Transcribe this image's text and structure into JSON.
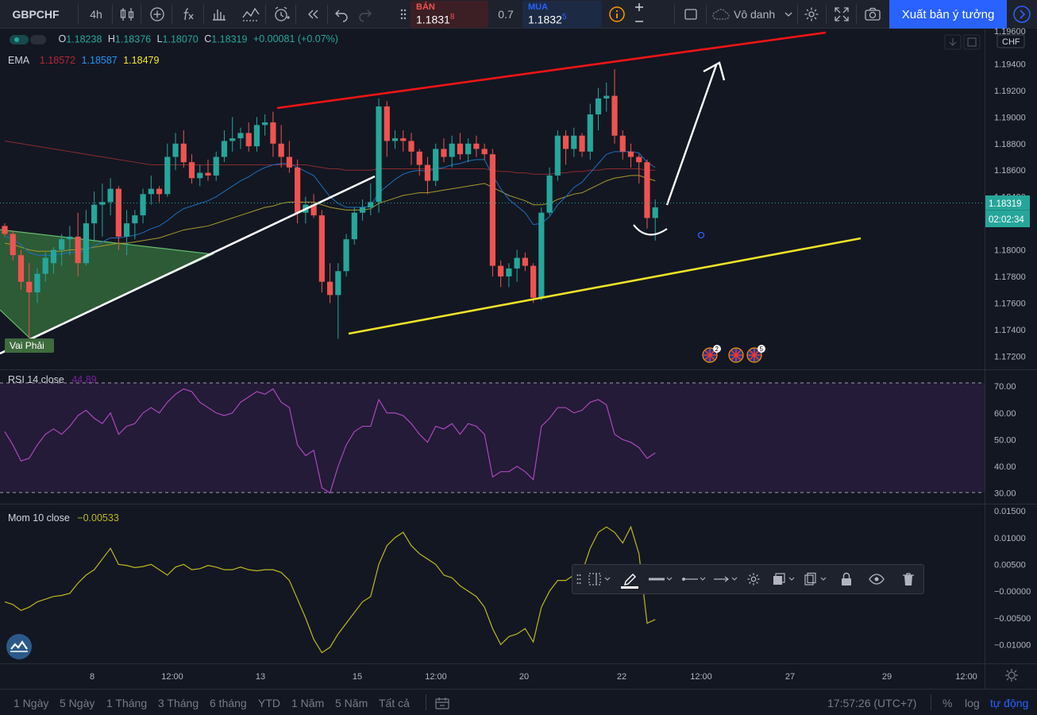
{
  "toolbar": {
    "symbol": "GBPCHF",
    "interval": "4h",
    "sell_label": "BÁN",
    "sell_price": "1.1831",
    "sell_price_sup": "8",
    "spread": "0.7",
    "buy_label": "MUA",
    "buy_price": "1.1832",
    "buy_price_sup": "5",
    "layout_name": "Vô danh",
    "publish_label": "Xuất bản ý tưởng"
  },
  "legend": {
    "ohlc": {
      "o_label": "O",
      "o": "1.18238",
      "h_label": "H",
      "h": "1.18376",
      "l_label": "L",
      "l": "1.18070",
      "c_label": "C",
      "c": "1.18319",
      "change": "+0.00081 (+0.07%)"
    },
    "ema": {
      "label": "EMA",
      "v1": "1.18572",
      "v2": "1.18587",
      "v3": "1.18479"
    },
    "rsi": {
      "label": "RSI 14 close",
      "value": "44.89"
    },
    "mom": {
      "label": "Mom 10 close",
      "value": "−0.00533"
    }
  },
  "price_axis": {
    "currency": "CHF",
    "top_partial": "1.19600",
    "ticks": [
      "1.19400",
      "1.19200",
      "1.19000",
      "1.18800",
      "1.18600",
      "1.18400",
      "1.18000",
      "1.17800",
      "1.17600",
      "1.17400",
      "1.17200"
    ],
    "last_price": "1.18319",
    "countdown": "02:02:34"
  },
  "rsi_axis": {
    "ticks": [
      "70.00",
      "60.00",
      "50.00",
      "40.00",
      "30.00"
    ]
  },
  "mom_axis": {
    "ticks": [
      "0.01500",
      "0.01000",
      "0.00500",
      "−0.00000",
      "−0.00500",
      "−0.01000"
    ]
  },
  "time_axis": {
    "labels": [
      "8",
      "12:00",
      "13",
      "15",
      "12:00",
      "20",
      "22",
      "12:00",
      "27",
      "29",
      "12:00"
    ]
  },
  "annotations": {
    "pattern_label": "Vai Phải",
    "event_badge_1": "2",
    "event_badge_2": "5"
  },
  "bottom": {
    "ranges": [
      "1 Ngày",
      "5 Ngày",
      "1 Tháng",
      "3 Tháng",
      "6 tháng",
      "YTD",
      "1 Năm",
      "5 Năm",
      "Tất cả"
    ],
    "clock": "17:57:26 (UTC+7)",
    "percent": "%",
    "log": "log",
    "auto": "tự động"
  },
  "colors": {
    "up": "#26a69a",
    "down": "#ef5350",
    "bg": "#131722",
    "accent": "#2962ff"
  },
  "icons": [
    "candles-icon",
    "add-indicator-icon",
    "fx-icon",
    "compare-icon",
    "indicators-icon",
    "alert-icon",
    "replay-icon",
    "undo-icon",
    "redo-icon",
    "info-icon",
    "fullscreen-icon",
    "cloud-icon",
    "gear-icon",
    "camera-icon",
    "pencil-icon",
    "lock-icon",
    "eye-icon",
    "trash-icon"
  ],
  "chart_data": {
    "type": "candlestick",
    "symbol": "GBPCHF",
    "ylim": [
      1.171,
      1.1966
    ],
    "candles": [
      [
        1.1818,
        1.182,
        1.181,
        1.1812
      ],
      [
        1.1812,
        1.1814,
        1.1792,
        1.1796
      ],
      [
        1.1796,
        1.18,
        1.177,
        1.1776
      ],
      [
        1.1776,
        1.179,
        1.1729,
        1.1768
      ],
      [
        1.1768,
        1.1786,
        1.176,
        1.1782
      ],
      [
        1.1782,
        1.1798,
        1.1776,
        1.1794
      ],
      [
        1.179,
        1.1802,
        1.1782,
        1.18
      ],
      [
        1.18,
        1.1812,
        1.1788,
        1.1808
      ],
      [
        1.1808,
        1.1818,
        1.1796,
        1.181
      ],
      [
        1.181,
        1.1828,
        1.178,
        1.179
      ],
      [
        1.179,
        1.183,
        1.1788,
        1.182
      ],
      [
        1.182,
        1.1844,
        1.1806,
        1.1834
      ],
      [
        1.1834,
        1.185,
        1.181,
        1.1836
      ],
      [
        1.1836,
        1.1854,
        1.1826,
        1.1846
      ],
      [
        1.1846,
        1.1848,
        1.18,
        1.181
      ],
      [
        1.181,
        1.183,
        1.1796,
        1.182
      ],
      [
        1.182,
        1.183,
        1.1808,
        1.1826
      ],
      [
        1.1826,
        1.1846,
        1.182,
        1.1842
      ],
      [
        1.1842,
        1.1856,
        1.1834,
        1.1846
      ],
      [
        1.1846,
        1.1848,
        1.1836,
        1.1842
      ],
      [
        1.1842,
        1.188,
        1.184,
        1.187
      ],
      [
        1.187,
        1.1888,
        1.186,
        1.188
      ],
      [
        1.188,
        1.189,
        1.1862,
        1.1866
      ],
      [
        1.1866,
        1.1872,
        1.185,
        1.1854
      ],
      [
        1.1854,
        1.1864,
        1.1848,
        1.1858
      ],
      [
        1.1858,
        1.1868,
        1.1852,
        1.1856
      ],
      [
        1.1856,
        1.1874,
        1.1852,
        1.187
      ],
      [
        1.187,
        1.189,
        1.1866,
        1.1882
      ],
      [
        1.1882,
        1.19,
        1.1874,
        1.1884
      ],
      [
        1.1884,
        1.1892,
        1.1876,
        1.1888
      ],
      [
        1.1888,
        1.1896,
        1.1874,
        1.1878
      ],
      [
        1.1878,
        1.19,
        1.1874,
        1.1894
      ],
      [
        1.1894,
        1.1902,
        1.1886,
        1.1896
      ],
      [
        1.1896,
        1.1904,
        1.187,
        1.188
      ],
      [
        1.188,
        1.1894,
        1.1862,
        1.187
      ],
      [
        1.187,
        1.1882,
        1.1858,
        1.1862
      ],
      [
        1.1862,
        1.1868,
        1.182,
        1.1828
      ],
      [
        1.1828,
        1.184,
        1.182,
        1.1834
      ],
      [
        1.1834,
        1.1842,
        1.1824,
        1.1826
      ],
      [
        1.1826,
        1.183,
        1.1768,
        1.1776
      ],
      [
        1.1776,
        1.179,
        1.176,
        1.1766
      ],
      [
        1.1766,
        1.179,
        1.1733,
        1.1784
      ],
      [
        1.1784,
        1.1812,
        1.178,
        1.1808
      ],
      [
        1.1808,
        1.1832,
        1.1804,
        1.1828
      ],
      [
        1.1828,
        1.1838,
        1.1822,
        1.1832
      ],
      [
        1.1832,
        1.185,
        1.1826,
        1.1836
      ],
      [
        1.1836,
        1.1914,
        1.1828,
        1.1908
      ],
      [
        1.1908,
        1.1912,
        1.187,
        1.1882
      ],
      [
        1.1882,
        1.189,
        1.1876,
        1.1884
      ],
      [
        1.1884,
        1.189,
        1.1874,
        1.1882
      ],
      [
        1.1882,
        1.1888,
        1.1864,
        1.1874
      ],
      [
        1.1874,
        1.1876,
        1.1856,
        1.1864
      ],
      [
        1.1864,
        1.187,
        1.1842,
        1.1852
      ],
      [
        1.1852,
        1.188,
        1.1848,
        1.1876
      ],
      [
        1.1876,
        1.1884,
        1.1866,
        1.187
      ],
      [
        1.187,
        1.1886,
        1.1862,
        1.188
      ],
      [
        1.188,
        1.1888,
        1.1868,
        1.1872
      ],
      [
        1.1872,
        1.1884,
        1.1866,
        1.188
      ],
      [
        1.188,
        1.1886,
        1.187,
        1.1876
      ],
      [
        1.1876,
        1.188,
        1.1868,
        1.1872
      ],
      [
        1.1872,
        1.1876,
        1.178,
        1.1788
      ],
      [
        1.1788,
        1.1792,
        1.1772,
        1.178
      ],
      [
        1.178,
        1.179,
        1.1772,
        1.1786
      ],
      [
        1.1786,
        1.18,
        1.1776,
        1.1794
      ],
      [
        1.1794,
        1.1798,
        1.1784,
        1.1788
      ],
      [
        1.1788,
        1.179,
        1.176,
        1.1764
      ],
      [
        1.1764,
        1.1832,
        1.1762,
        1.1828
      ],
      [
        1.1828,
        1.1862,
        1.1826,
        1.1856
      ],
      [
        1.1856,
        1.189,
        1.1852,
        1.1886
      ],
      [
        1.1886,
        1.189,
        1.1864,
        1.1876
      ],
      [
        1.1876,
        1.1892,
        1.187,
        1.1886
      ],
      [
        1.1886,
        1.1888,
        1.187,
        1.1874
      ],
      [
        1.1874,
        1.191,
        1.1868,
        1.1902
      ],
      [
        1.1902,
        1.1922,
        1.189,
        1.1914
      ],
      [
        1.1914,
        1.1926,
        1.1904,
        1.1916
      ],
      [
        1.1916,
        1.1936,
        1.188,
        1.1886
      ],
      [
        1.1886,
        1.189,
        1.1868,
        1.1874
      ],
      [
        1.1874,
        1.188,
        1.1862,
        1.187
      ],
      [
        1.187,
        1.1872,
        1.185,
        1.1866
      ],
      [
        1.1866,
        1.1868,
        1.1816,
        1.1824
      ],
      [
        1.1824,
        1.1838,
        1.1807,
        1.1832
      ]
    ],
    "ema_short": [
      1.181,
      1.1808,
      1.1804,
      1.1798,
      1.1796,
      1.1796,
      1.1796,
      1.1797,
      1.1798,
      1.1798,
      1.18,
      1.1803,
      1.1806,
      1.1809,
      1.1809,
      1.181,
      1.1811,
      1.1813,
      1.1816,
      1.1818,
      1.1822,
      1.1827,
      1.1831,
      1.1833,
      1.1835,
      1.1837,
      1.184,
      1.1844,
      1.1848,
      1.1852,
      1.1855,
      1.1859,
      1.1862,
      1.1864,
      1.1865,
      1.1865,
      1.1862,
      1.1859,
      1.1856,
      1.1848,
      1.184,
      1.1835,
      1.1832,
      1.1832,
      1.1832,
      1.1833,
      1.1843,
      1.1848,
      1.1853,
      1.1857,
      1.1859,
      1.186,
      1.1859,
      1.1861,
      1.1862,
      1.1864,
      1.1865,
      1.1867,
      1.1868,
      1.1868,
      1.1856,
      1.1846,
      1.1838,
      1.1833,
      1.1828,
      1.1819,
      1.182,
      1.1825,
      1.1834,
      1.184,
      1.1847,
      1.1851,
      1.1858,
      1.1865,
      1.1872,
      1.1874,
      1.1874,
      1.1874,
      1.1873,
      1.1866,
      1.1862
    ],
    "ema_mid": [
      1.1805,
      1.1804,
      1.1802,
      1.18,
      1.1799,
      1.1799,
      1.1799,
      1.1799,
      1.18,
      1.18,
      1.1801,
      1.1802,
      1.1803,
      1.1804,
      1.1805,
      1.1805,
      1.1806,
      1.1807,
      1.1808,
      1.1809,
      1.1811,
      1.1813,
      1.1815,
      1.1816,
      1.1817,
      1.1818,
      1.182,
      1.1822,
      1.1824,
      1.1826,
      1.1828,
      1.183,
      1.1832,
      1.1833,
      1.1835,
      1.1836,
      1.1836,
      1.1836,
      1.1836,
      1.1834,
      1.1832,
      1.1831,
      1.183,
      1.183,
      1.183,
      1.1831,
      1.1835,
      1.1837,
      1.1839,
      1.1841,
      1.1842,
      1.1843,
      1.1843,
      1.1844,
      1.1845,
      1.1846,
      1.1847,
      1.1848,
      1.1849,
      1.185,
      1.1847,
      1.1844,
      1.1841,
      1.1839,
      1.1837,
      1.1834,
      1.1834,
      1.1835,
      1.1838,
      1.184,
      1.1842,
      1.1843,
      1.1846,
      1.1849,
      1.1852,
      1.1854,
      1.1855,
      1.1856,
      1.1856,
      1.1854,
      1.1852
    ],
    "ema_long": [
      1.1882,
      1.1881,
      1.188,
      1.1879,
      1.1878,
      1.1877,
      1.1876,
      1.1875,
      1.1874,
      1.1873,
      1.1872,
      1.1871,
      1.187,
      1.1869,
      1.1868,
      1.1867,
      1.1866,
      1.1865,
      1.1864,
      1.1864,
      1.1864,
      1.1864,
      1.1864,
      1.1864,
      1.1864,
      1.1864,
      1.1864,
      1.1864,
      1.1864,
      1.1864,
      1.1864,
      1.1864,
      1.1864,
      1.1864,
      1.1864,
      1.1864,
      1.1864,
      1.1864,
      1.1863,
      1.1862,
      1.1861,
      1.1861,
      1.186,
      1.186,
      1.186,
      1.186,
      1.1861,
      1.1861,
      1.1861,
      1.1861,
      1.1861,
      1.1861,
      1.1861,
      1.1861,
      1.1861,
      1.1861,
      1.1861,
      1.1861,
      1.1861,
      1.1861,
      1.186,
      1.1859,
      1.1859,
      1.1858,
      1.1858,
      1.1857,
      1.1857,
      1.1857,
      1.1858,
      1.1858,
      1.1859,
      1.1859,
      1.186,
      1.186,
      1.1861,
      1.1861,
      1.1861,
      1.1861,
      1.1861,
      1.186,
      1.186
    ],
    "rsi": [
      53,
      48,
      42,
      43,
      48,
      52,
      54,
      52,
      55,
      59,
      61,
      58,
      56,
      60,
      52,
      55,
      56,
      60,
      62,
      60,
      64,
      67,
      69,
      68,
      64,
      62,
      60,
      59,
      60,
      64,
      66,
      68,
      67,
      69,
      64,
      62,
      48,
      44,
      46,
      32,
      30,
      40,
      48,
      53,
      55,
      55,
      65,
      60,
      60,
      59,
      56,
      52,
      49,
      55,
      54,
      56,
      52,
      56,
      55,
      52,
      36,
      38,
      38,
      40,
      38,
      35,
      55,
      58,
      62,
      62,
      60,
      61,
      64,
      65,
      63,
      52,
      50,
      49,
      47,
      43,
      45
    ],
    "rsi_ylim": [
      26,
      76
    ],
    "momentum": [
      -0.002,
      -0.0025,
      -0.0036,
      -0.003,
      -0.002,
      -0.0015,
      -0.001,
      -0.0008,
      -0.0004,
      0.0015,
      0.003,
      0.004,
      0.006,
      0.008,
      0.005,
      0.0048,
      0.0044,
      0.0046,
      0.005,
      0.004,
      0.003,
      0.0045,
      0.005,
      0.004,
      0.0042,
      0.0048,
      0.0045,
      0.004,
      0.004,
      0.0045,
      0.004,
      0.0038,
      0.004,
      0.004,
      0.0035,
      0.002,
      -0.0015,
      -0.005,
      -0.009,
      -0.0115,
      -0.0105,
      -0.008,
      -0.006,
      -0.004,
      -0.002,
      -0.001,
      0.005,
      0.0085,
      0.01,
      0.011,
      0.0085,
      0.007,
      0.006,
      0.005,
      0.003,
      0.0025,
      0.001,
      0.0,
      -0.001,
      -0.003,
      -0.007,
      -0.01,
      -0.0085,
      -0.008,
      -0.007,
      -0.0095,
      -0.003,
      0.0,
      0.002,
      0.002,
      0.003,
      0.0035,
      0.008,
      0.011,
      0.012,
      0.011,
      0.009,
      0.012,
      0.007,
      -0.006,
      -0.0053
    ],
    "mom_ylim": [
      -0.0135,
      0.0162
    ]
  }
}
